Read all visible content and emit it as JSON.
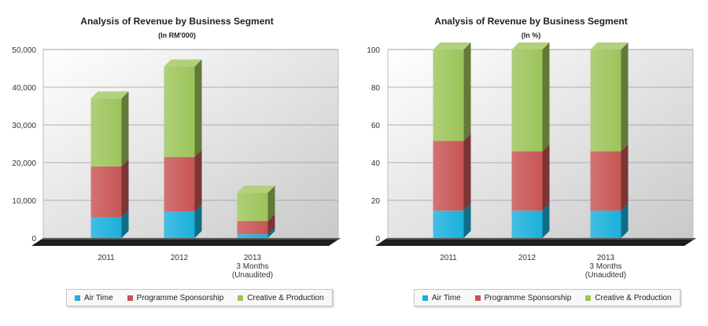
{
  "colors": {
    "air_time": "#1ab0dc",
    "programme_sponsorship": "#c85454",
    "creative_production": "#9cc45a"
  },
  "legend": [
    {
      "label": "Air Time",
      "color": "#1ab0dc"
    },
    {
      "label": "Programme Sponsorship",
      "color": "#c85454"
    },
    {
      "label": "Creative & Production",
      "color": "#9cc45a"
    }
  ],
  "chart_data": [
    {
      "type": "bar",
      "stacked": true,
      "title": "Analysis of Revenue by Business Segment",
      "subtitle": "(In RM'000)",
      "categories": [
        [
          "2011"
        ],
        [
          "2012"
        ],
        [
          "2013",
          "3 Months",
          "(Unaudited)"
        ]
      ],
      "series": [
        {
          "name": "Air Time",
          "values": [
            5500,
            7000,
            1000
          ]
        },
        {
          "name": "Programme Sponsorship",
          "values": [
            13500,
            14500,
            3500
          ]
        },
        {
          "name": "Creative & Production",
          "values": [
            18000,
            24000,
            7500
          ]
        }
      ],
      "ylim": [
        0,
        50000
      ],
      "yticks": [
        0,
        10000,
        20000,
        30000,
        40000,
        50000
      ],
      "ytick_labels": [
        "0",
        "10,000",
        "20,000",
        "30,000",
        "40,000",
        "50,000"
      ],
      "grid": true,
      "legend_position": "bottom"
    },
    {
      "type": "bar",
      "stacked": true,
      "title": "Analysis of Revenue by Business Segment",
      "subtitle": "(In %)",
      "categories": [
        [
          "2011"
        ],
        [
          "2012"
        ],
        [
          "2013",
          "3 Months",
          "(Unaudited)"
        ]
      ],
      "series": [
        {
          "name": "Air Time",
          "values": [
            14.5,
            14.5,
            14.5
          ]
        },
        {
          "name": "Programme Sponsorship",
          "values": [
            37,
            31.5,
            31.5
          ]
        },
        {
          "name": "Creative & Production",
          "values": [
            48.5,
            54,
            54
          ]
        }
      ],
      "ylim": [
        0,
        100
      ],
      "yticks": [
        0,
        20,
        40,
        60,
        80,
        100
      ],
      "ytick_labels": [
        "0",
        "20",
        "40",
        "60",
        "80",
        "100"
      ],
      "grid": true,
      "legend_position": "bottom"
    }
  ]
}
